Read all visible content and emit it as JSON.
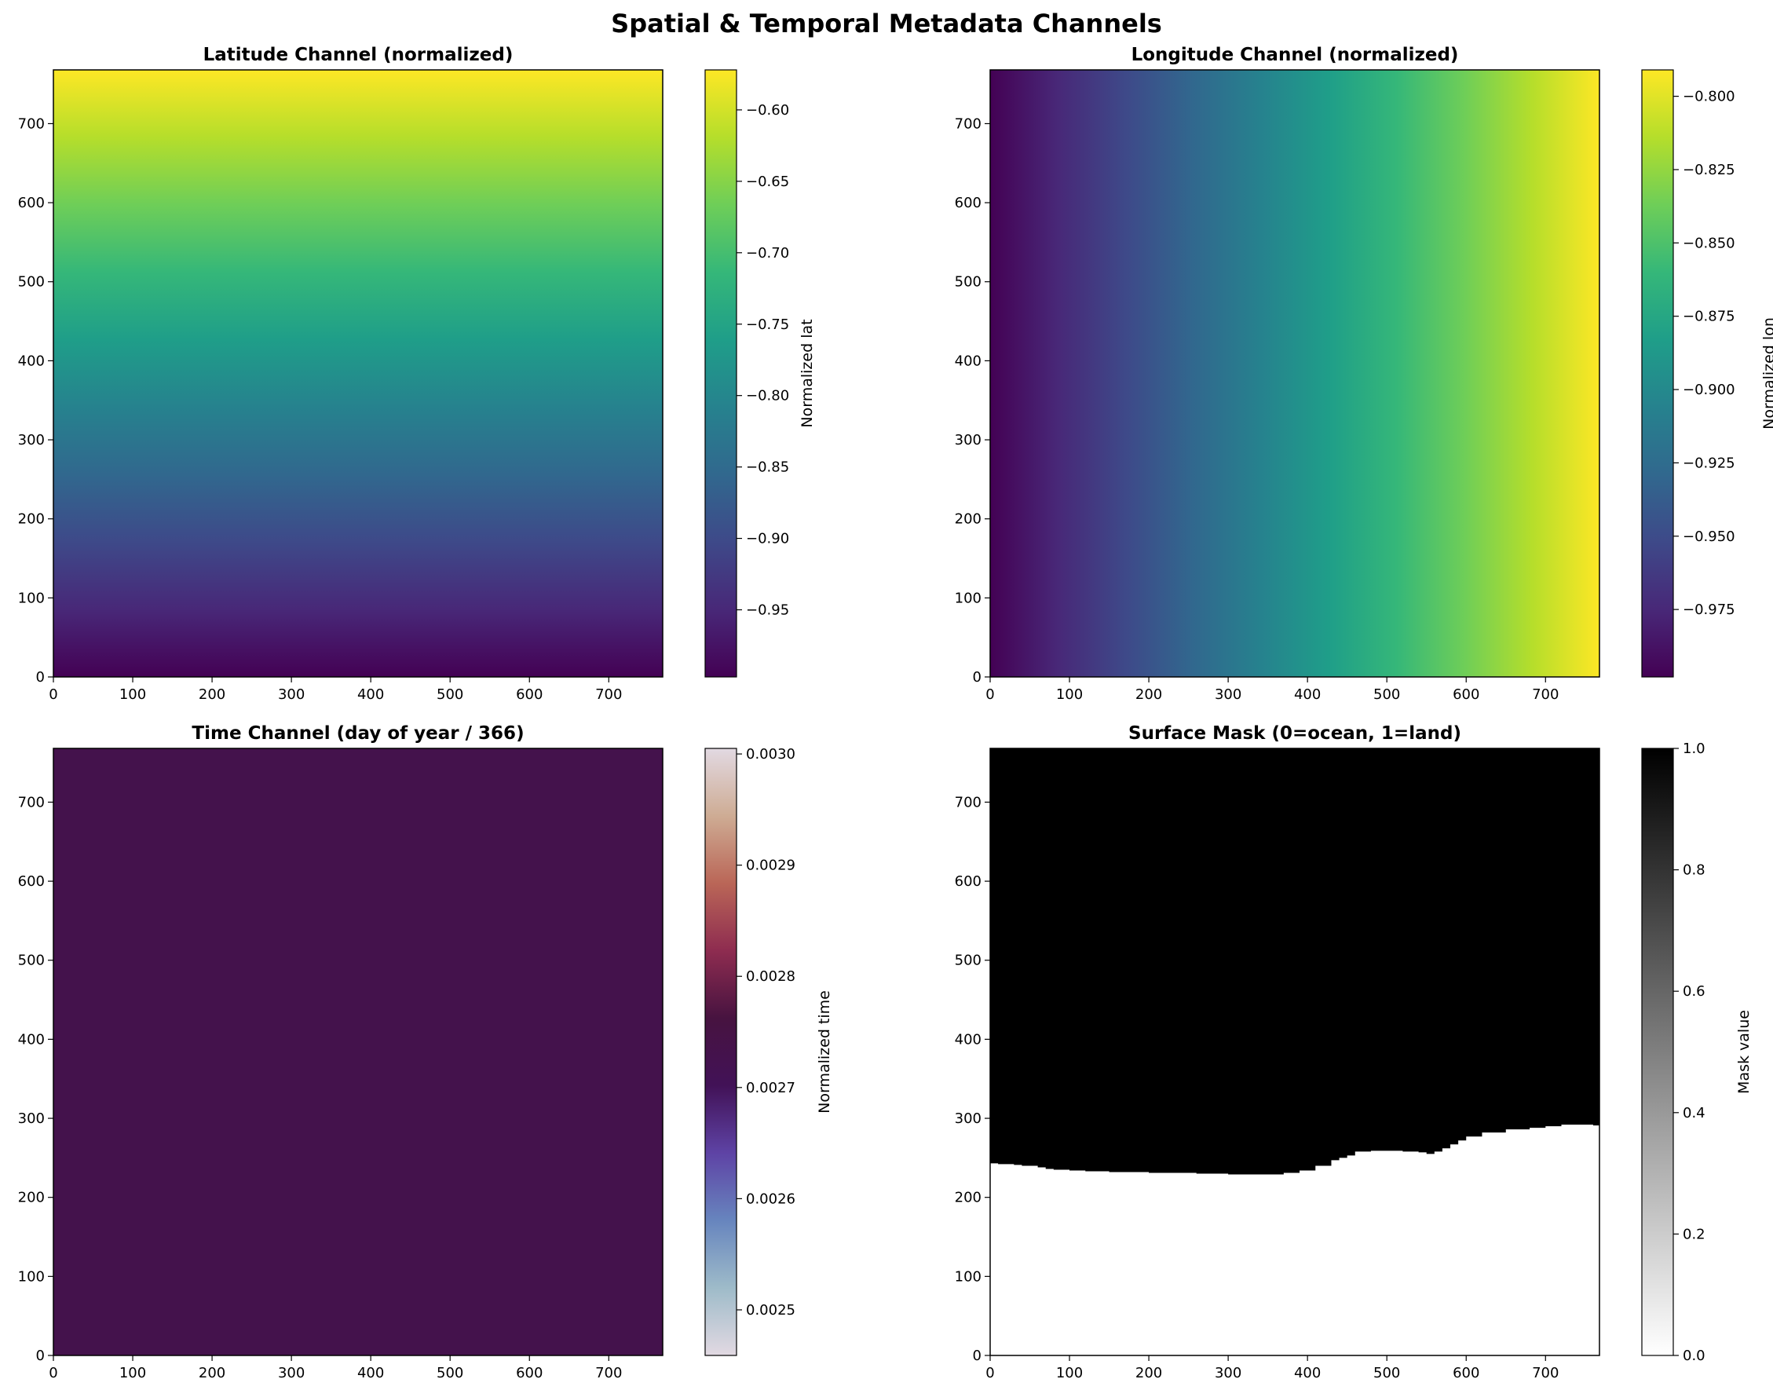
{
  "figure": {
    "title": "Spatial & Temporal Metadata Channels"
  },
  "chart_data": [
    {
      "type": "heatmap",
      "title": "Latitude Channel (normalized)",
      "xlabel": "",
      "ylabel": "",
      "xlim": [
        0,
        768
      ],
      "ylim": [
        0,
        768
      ],
      "xticks": [
        0,
        100,
        200,
        300,
        400,
        500,
        600,
        700
      ],
      "yticks": [
        0,
        100,
        200,
        300,
        400,
        500,
        600,
        700
      ],
      "gradient_direction": "vertical",
      "value_range": [
        -0.997,
        -0.572
      ],
      "colormap": "viridis",
      "colorbar": {
        "label": "Normalized lat",
        "range": [
          -0.997,
          -0.572
        ],
        "ticks": [
          -0.95,
          -0.9,
          -0.85,
          -0.8,
          -0.75,
          -0.7,
          -0.65,
          -0.6
        ],
        "tick_labels": [
          "−0.95",
          "−0.90",
          "−0.85",
          "−0.80",
          "−0.75",
          "−0.70",
          "−0.65",
          "−0.60"
        ]
      }
    },
    {
      "type": "heatmap",
      "title": "Longitude Channel (normalized)",
      "xlabel": "",
      "ylabel": "",
      "xlim": [
        0,
        768
      ],
      "ylim": [
        0,
        768
      ],
      "xticks": [
        0,
        100,
        200,
        300,
        400,
        500,
        600,
        700
      ],
      "yticks": [
        0,
        100,
        200,
        300,
        400,
        500,
        600,
        700
      ],
      "gradient_direction": "horizontal",
      "value_range": [
        -0.998,
        -0.791
      ],
      "colormap": "viridis",
      "colorbar": {
        "label": "Normalized lon",
        "range": [
          -0.998,
          -0.791
        ],
        "ticks": [
          -0.975,
          -0.95,
          -0.925,
          -0.9,
          -0.875,
          -0.85,
          -0.825,
          -0.8
        ],
        "tick_labels": [
          "−0.975",
          "−0.950",
          "−0.925",
          "−0.900",
          "−0.875",
          "−0.850",
          "−0.825",
          "−0.800"
        ]
      }
    },
    {
      "type": "heatmap",
      "title": "Time Channel (day of year / 366)",
      "xlabel": "",
      "ylabel": "",
      "xlim": [
        0,
        768
      ],
      "ylim": [
        0,
        768
      ],
      "xticks": [
        0,
        100,
        200,
        300,
        400,
        500,
        600,
        700
      ],
      "yticks": [
        0,
        100,
        200,
        300,
        400,
        500,
        600,
        700
      ],
      "constant_value": 0.00273,
      "colormap": "twilight",
      "colorbar": {
        "label": "Normalized time",
        "range": [
          0.002459,
          0.003005
        ],
        "ticks": [
          0.0025,
          0.0026,
          0.0027,
          0.0028,
          0.0029,
          0.003
        ],
        "tick_labels": [
          "0.0025",
          "0.0026",
          "0.0027",
          "0.0028",
          "0.0029",
          "0.0030"
        ]
      }
    },
    {
      "type": "heatmap",
      "title": "Surface Mask (0=ocean, 1=land)",
      "xlabel": "",
      "ylabel": "",
      "xlim": [
        0,
        768
      ],
      "ylim": [
        0,
        768
      ],
      "xticks": [
        0,
        100,
        200,
        300,
        400,
        500,
        600,
        700
      ],
      "yticks": [
        0,
        100,
        200,
        300,
        400,
        500,
        600,
        700
      ],
      "colormap": "gray_r",
      "land_value": 1,
      "ocean_value": 0,
      "boundary": {
        "x": [
          0,
          10,
          20,
          30,
          40,
          50,
          60,
          70,
          80,
          100,
          120,
          150,
          180,
          200,
          230,
          260,
          280,
          300,
          320,
          340,
          350,
          370,
          390,
          410,
          430,
          440,
          450,
          460,
          480,
          500,
          520,
          540,
          550,
          560,
          570,
          580,
          590,
          600,
          620,
          650,
          680,
          700,
          720,
          740,
          760,
          768
        ],
        "y": [
          243,
          242,
          242,
          241,
          240,
          240,
          238,
          236,
          235,
          234,
          233,
          232,
          232,
          231,
          231,
          230,
          230,
          229,
          229,
          229,
          229,
          231,
          234,
          240,
          247,
          250,
          253,
          258,
          259,
          259,
          258,
          257,
          255,
          258,
          262,
          267,
          272,
          277,
          282,
          286,
          288,
          290,
          292,
          292,
          291,
          291
        ]
      },
      "colorbar": {
        "label": "Mask value",
        "range": [
          0,
          1
        ],
        "ticks": [
          0,
          0.2,
          0.4,
          0.6,
          0.8,
          1
        ],
        "tick_labels": [
          "0.0",
          "0.2",
          "0.4",
          "0.6",
          "0.8",
          "1.0"
        ]
      }
    }
  ],
  "colormaps": {
    "viridis": [
      "#440154",
      "#482878",
      "#3e4989",
      "#31688e",
      "#26828e",
      "#1f9e89",
      "#35b779",
      "#6ece58",
      "#b5de2b",
      "#fde725"
    ],
    "twilight": [
      "#e2d9e2",
      "#9ebbc9",
      "#6785be",
      "#5e43a5",
      "#421257",
      "#471340",
      "#8e2c50",
      "#ba6657",
      "#ceac94",
      "#e2d9e2"
    ],
    "gray_r": [
      "#ffffff",
      "#000000"
    ]
  }
}
